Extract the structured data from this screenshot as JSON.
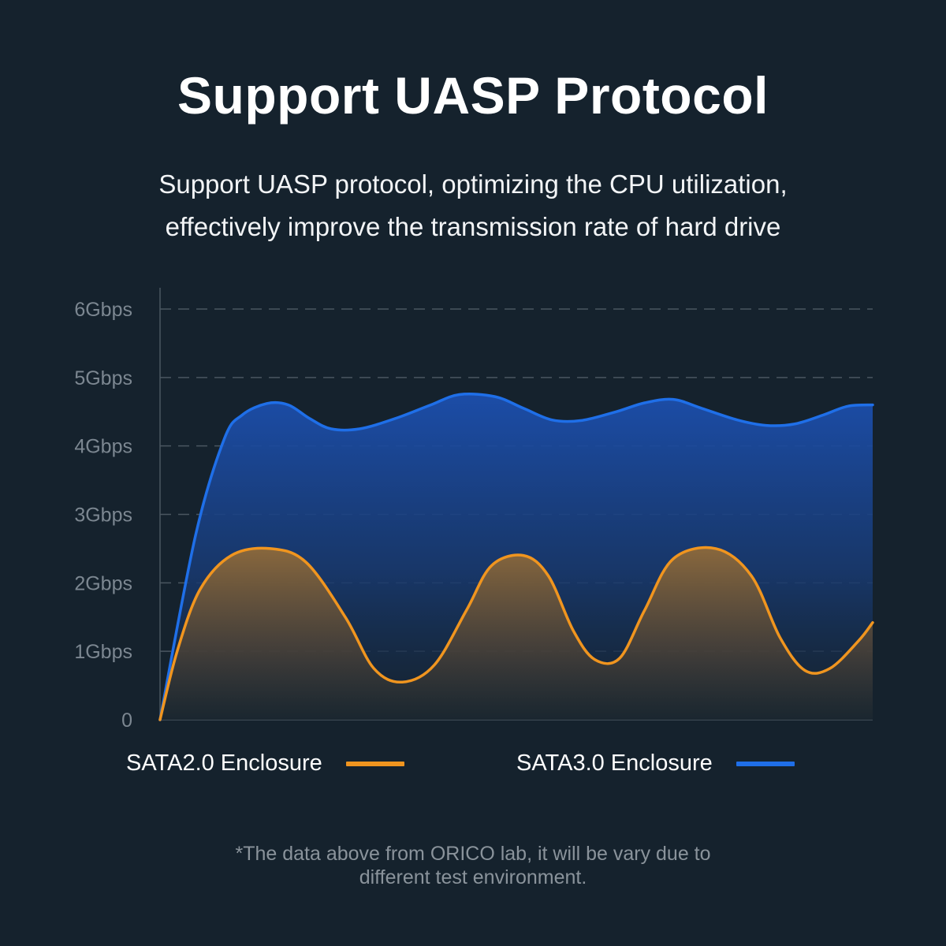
{
  "header": {
    "title": "Support UASP Protocol",
    "subtitle_lines": [
      "Support UASP protocol, optimizing the CPU utilization,",
      "effectively improve the transmission rate of hard drive"
    ]
  },
  "footnote_lines": [
    "*The data above from ORICO lab, it will be vary due to",
    "different test environment."
  ],
  "colors": {
    "background": "#15222d",
    "sata2": "#f0951f",
    "sata3": "#1f6fe8",
    "grid": "#4a5660"
  },
  "chart_data": {
    "type": "area",
    "title": "",
    "xlabel": "",
    "ylabel": "",
    "ylim": [
      0,
      6
    ],
    "xlim": [
      0,
      100
    ],
    "grid": true,
    "legend_position": "bottom",
    "y_tick_labels": [
      "0",
      "1Gbps",
      "2Gbps",
      "3Gbps",
      "4Gbps",
      "5Gbps",
      "6Gbps"
    ],
    "y_tick_values": [
      0,
      1,
      2,
      3,
      4,
      5,
      6
    ],
    "series": [
      {
        "name": "SATA2.0 Enclosure",
        "color": "#f0951f",
        "points": [
          [
            0,
            0
          ],
          [
            2.4,
            1.0
          ],
          [
            5.6,
            1.9
          ],
          [
            10,
            2.4
          ],
          [
            15.5,
            2.5
          ],
          [
            20.5,
            2.3
          ],
          [
            26,
            1.5
          ],
          [
            30,
            0.75
          ],
          [
            34,
            0.55
          ],
          [
            38.5,
            0.8
          ],
          [
            43,
            1.6
          ],
          [
            46.5,
            2.25
          ],
          [
            51,
            2.4
          ],
          [
            54.5,
            2.1
          ],
          [
            58,
            1.3
          ],
          [
            61,
            0.88
          ],
          [
            64.5,
            0.9
          ],
          [
            68,
            1.6
          ],
          [
            72,
            2.35
          ],
          [
            78,
            2.5
          ],
          [
            83,
            2.1
          ],
          [
            87,
            1.2
          ],
          [
            90.5,
            0.72
          ],
          [
            94,
            0.75
          ],
          [
            98,
            1.15
          ],
          [
            100,
            1.42
          ]
        ]
      },
      {
        "name": "SATA3.0 Enclosure",
        "color": "#1f6fe8",
        "points": [
          [
            0,
            0
          ],
          [
            5,
            2.7
          ],
          [
            9,
            4.1
          ],
          [
            11.5,
            4.45
          ],
          [
            15,
            4.62
          ],
          [
            18,
            4.6
          ],
          [
            21,
            4.4
          ],
          [
            24,
            4.25
          ],
          [
            28,
            4.25
          ],
          [
            33,
            4.4
          ],
          [
            38,
            4.6
          ],
          [
            42,
            4.75
          ],
          [
            47,
            4.72
          ],
          [
            51,
            4.55
          ],
          [
            55,
            4.38
          ],
          [
            59,
            4.37
          ],
          [
            64,
            4.5
          ],
          [
            68,
            4.63
          ],
          [
            72,
            4.68
          ],
          [
            76,
            4.55
          ],
          [
            81,
            4.38
          ],
          [
            85,
            4.3
          ],
          [
            89,
            4.32
          ],
          [
            93,
            4.45
          ],
          [
            96.5,
            4.58
          ],
          [
            100,
            4.6
          ]
        ]
      }
    ]
  }
}
